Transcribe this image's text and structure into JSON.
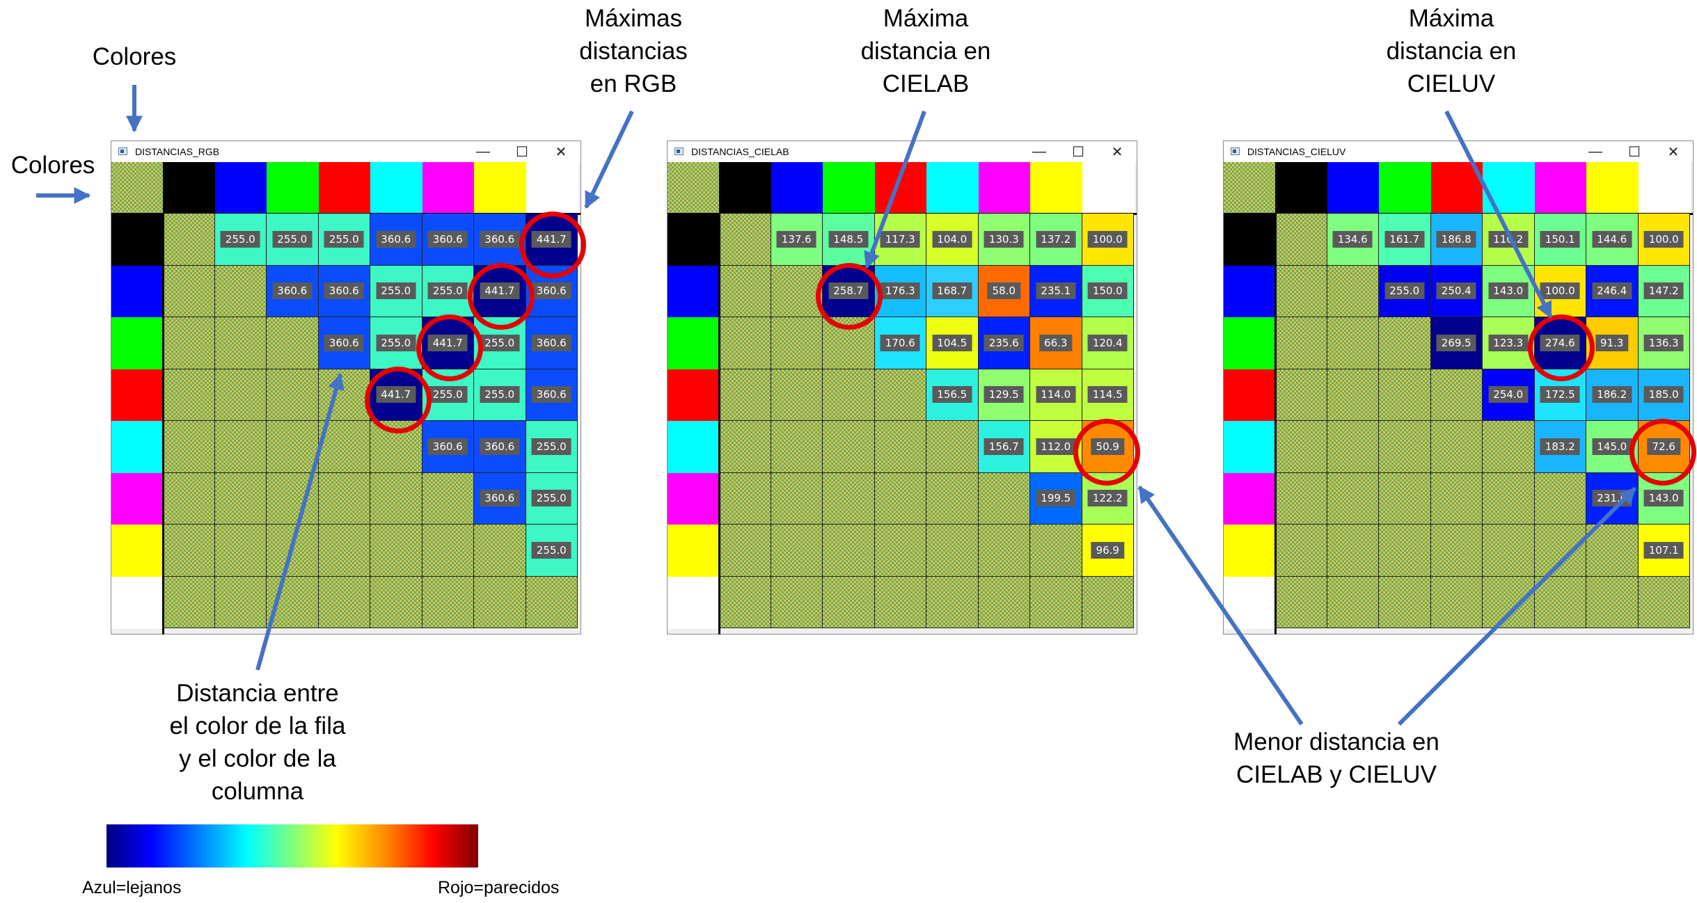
{
  "annotations": {
    "colores_top": "Colores",
    "colores_left": "Colores",
    "max_rgb": "Máximas\ndistancias\nen RGB",
    "max_cielab": "Máxima\ndistancia en\nCIELAB",
    "max_cieluv": "Máxima\ndistancia en\nCIELUV",
    "distancia": "Distancia entre\nel color de la fila\ny el color de la\ncolumna",
    "menor": "Menor distancia en\nCIELAB y CIELUV"
  },
  "colorbar": {
    "left_label": "Azul=lejanos",
    "right_label": "Rojo=parecidos"
  },
  "swatches": [
    "#000000",
    "#0000ff",
    "#00ff00",
    "#ff0000",
    "#00ffff",
    "#ff00ff",
    "#ffff00",
    "#ffffff"
  ],
  "windows": [
    {
      "title": "DISTANCIAS_RGB",
      "controls": {
        "minimize": "—",
        "maximize": "☐",
        "close": "✕"
      },
      "rows": [
        [
          [
            "255.0",
            "#3df7c4"
          ],
          [
            "255.0",
            "#3df7c4"
          ],
          [
            "255.0",
            "#3df7c4"
          ],
          [
            "360.6",
            "#0b4cff"
          ],
          [
            "360.6",
            "#0b4cff"
          ],
          [
            "360.6",
            "#0b4cff"
          ],
          [
            "441.7",
            "#00008f"
          ]
        ],
        [
          [
            "360.6",
            "#0b4cff"
          ],
          [
            "360.6",
            "#0b4cff"
          ],
          [
            "255.0",
            "#3df7c4"
          ],
          [
            "255.0",
            "#3df7c4"
          ],
          [
            "441.7",
            "#00008f"
          ],
          [
            "360.6",
            "#0b4cff"
          ]
        ],
        [
          [
            "360.6",
            "#0b4cff"
          ],
          [
            "255.0",
            "#3df7c4"
          ],
          [
            "441.7",
            "#00008f"
          ],
          [
            "255.0",
            "#3df7c4"
          ],
          [
            "360.6",
            "#0b4cff"
          ]
        ],
        [
          [
            "441.7",
            "#00008f"
          ],
          [
            "255.0",
            "#3df7c4"
          ],
          [
            "255.0",
            "#3df7c4"
          ],
          [
            "360.6",
            "#0b4cff"
          ]
        ],
        [
          [
            "360.6",
            "#0b4cff"
          ],
          [
            "360.6",
            "#0b4cff"
          ],
          [
            "255.0",
            "#3df7c4"
          ]
        ],
        [
          [
            "360.6",
            "#0b4cff"
          ],
          [
            "255.0",
            "#3df7c4"
          ]
        ],
        [
          [
            "255.0",
            "#3df7c4"
          ]
        ]
      ]
    },
    {
      "title": "DISTANCIAS_CIELAB",
      "controls": {
        "minimize": "—",
        "maximize": "☐",
        "close": "✕"
      },
      "rows": [
        [
          [
            "137.6",
            "#7fff7f"
          ],
          [
            "148.5",
            "#5cffa0"
          ],
          [
            "117.3",
            "#b5ff4a"
          ],
          [
            "104.0",
            "#d8ff26"
          ],
          [
            "130.3",
            "#8fff6f"
          ],
          [
            "137.2",
            "#7fff7f"
          ],
          [
            "100.0",
            "#ffe600"
          ]
        ],
        [
          [
            "258.7",
            "#00008f"
          ],
          [
            "176.3",
            "#15bfff"
          ],
          [
            "168.7",
            "#2ccfff"
          ],
          [
            "58.0",
            "#ff6a00"
          ],
          [
            "235.1",
            "#0020ff"
          ],
          [
            "150.0",
            "#4cffb2"
          ]
        ],
        [
          [
            "170.6",
            "#1ee4ff"
          ],
          [
            "104.5",
            "#eeff10"
          ],
          [
            "235.6",
            "#0020ff"
          ],
          [
            "66.3",
            "#ff8000"
          ],
          [
            "120.4",
            "#b2ff4c"
          ]
        ],
        [
          [
            "156.5",
            "#2cf0e0"
          ],
          [
            "129.5",
            "#8fff6f"
          ],
          [
            "114.0",
            "#c0ff40"
          ],
          [
            "114.5",
            "#c0ff40"
          ]
        ],
        [
          [
            "156.7",
            "#2cf0e0"
          ],
          [
            "112.0",
            "#c8ff38"
          ],
          [
            "50.9",
            "#ff8a00"
          ]
        ],
        [
          [
            "199.5",
            "#0069ff"
          ],
          [
            "122.2",
            "#a8ff56"
          ]
        ],
        [
          [
            "96.9",
            "#ffff00"
          ]
        ]
      ]
    },
    {
      "title": "DISTANCIAS_CIELUV",
      "controls": {
        "minimize": "—",
        "maximize": "☐",
        "close": "✕"
      },
      "rows": [
        [
          [
            "134.6",
            "#7fff7f"
          ],
          [
            "161.7",
            "#4cffb2"
          ],
          [
            "186.8",
            "#1ab5ff"
          ],
          [
            "110.2",
            "#b5ff4a"
          ],
          [
            "150.1",
            "#6cff92"
          ],
          [
            "144.6",
            "#7fff7f"
          ],
          [
            "100.0",
            "#ffe600"
          ]
        ],
        [
          [
            "255.0",
            "#0000f0"
          ],
          [
            "250.4",
            "#0000ff"
          ],
          [
            "143.0",
            "#7fff7f"
          ],
          [
            "100.0",
            "#ffe600"
          ],
          [
            "246.4",
            "#0014ff"
          ],
          [
            "147.2",
            "#6cff92"
          ]
        ],
        [
          [
            "269.5",
            "#00008f"
          ],
          [
            "123.3",
            "#a8ff56"
          ],
          [
            "274.6",
            "#00008f"
          ],
          [
            "91.3",
            "#ffcc00"
          ],
          [
            "136.3",
            "#8fff6f"
          ]
        ],
        [
          [
            "254.0",
            "#0000ff"
          ],
          [
            "172.5",
            "#1ee4ff"
          ],
          [
            "186.2",
            "#1ab5ff"
          ],
          [
            "185.0",
            "#1ab5ff"
          ]
        ],
        [
          [
            "183.2",
            "#1ab5ff"
          ],
          [
            "145.0",
            "#7fff7f"
          ],
          [
            "72.6",
            "#ff8a00"
          ]
        ],
        [
          [
            "231.0",
            "#0020ff"
          ],
          [
            "143.0",
            "#7fff7f"
          ]
        ],
        [
          [
            "107.1",
            "#ffff00"
          ]
        ]
      ]
    }
  ]
}
